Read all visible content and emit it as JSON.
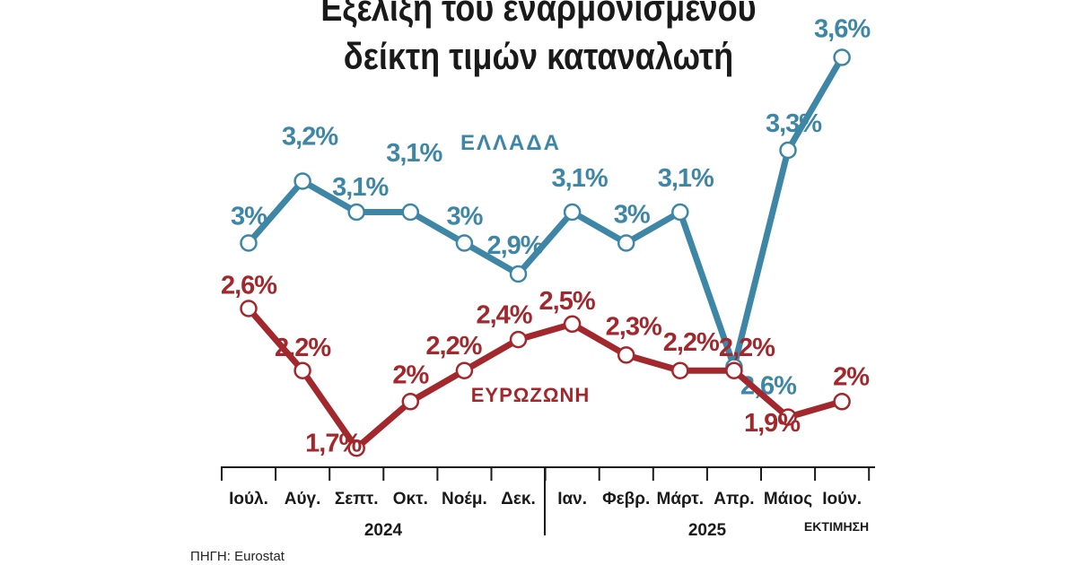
{
  "title_lines": [
    "Εξέλιξη του εναρμονισμένου",
    "δείκτη τιμών καταναλωτή"
  ],
  "source": "ΠΗΓΗ: Eurostat",
  "colors": {
    "greece": "#3e86a6",
    "eurozone": "#a3282d",
    "text": "#1a1a1a"
  },
  "chart_data": {
    "type": "line",
    "x": [
      "Ιούλ.",
      "Αύγ.",
      "Σεπτ.",
      "Οκτ.",
      "Νοέμ.",
      "Δεκ.",
      "Ιαν.",
      "Φεβρ.",
      "Μάρτ.",
      "Απρ.",
      "Μάιος",
      "Ιούν."
    ],
    "year_groups": [
      {
        "label": "2024",
        "months": [
          "Ιούλ.",
          "Αύγ.",
          "Σεπτ.",
          "Οκτ.",
          "Νοέμ.",
          "Δεκ."
        ]
      },
      {
        "label": "2025",
        "months": [
          "Ιαν.",
          "Φεβρ.",
          "Μάρτ.",
          "Απρ.",
          "Μάιος",
          "Ιούν."
        ]
      }
    ],
    "estimate_note": "ΕΚΤΙΜΗΣΗ",
    "unit": "%",
    "series": [
      {
        "name": "ΕΛΛΑΔΑ",
        "key": "greece",
        "values": [
          3.0,
          3.2,
          3.1,
          3.1,
          3.0,
          2.9,
          3.1,
          3.0,
          3.1,
          2.6,
          3.3,
          3.6
        ],
        "labels": [
          "3%",
          "3,2%",
          "3,1%",
          "3,1%",
          "3%",
          "2,9%",
          "3,1%",
          "3%",
          "3,1%",
          "2,6%",
          "3,3%",
          "3,6%"
        ]
      },
      {
        "name": "ΕΥΡΩΖΩΝΗ",
        "key": "eurozone",
        "values": [
          2.6,
          2.2,
          1.7,
          2.0,
          2.2,
          2.4,
          2.5,
          2.3,
          2.2,
          2.2,
          1.9,
          2.0
        ],
        "labels": [
          "2,6%",
          "2,2%",
          "1,7%",
          "2%",
          "2,2%",
          "2,4%",
          "2,5%",
          "2,3%",
          "2,2%",
          "2,2%",
          "1,9%",
          "2%"
        ]
      }
    ],
    "grid": false,
    "legend": "inline"
  }
}
